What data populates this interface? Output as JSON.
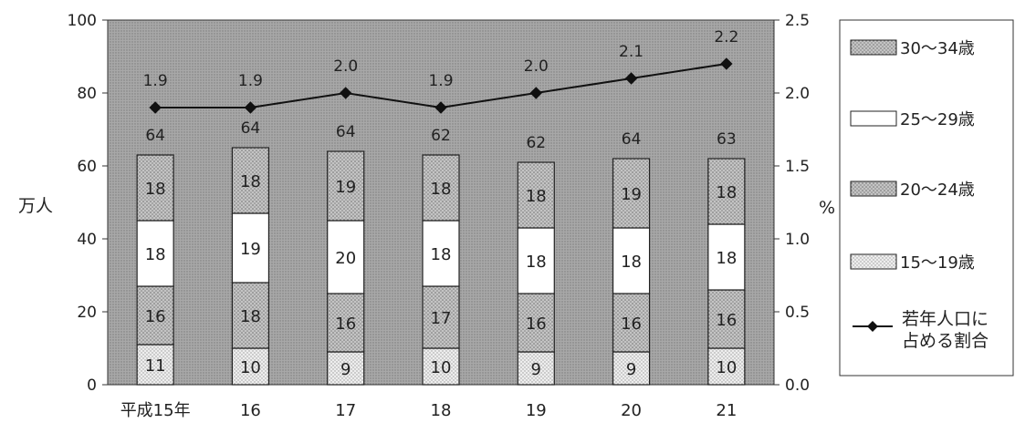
{
  "chart_data": {
    "type": "bar",
    "stacked": true,
    "categories": [
      "平成15年",
      "16",
      "17",
      "18",
      "19",
      "20",
      "21"
    ],
    "series": [
      {
        "name": "15～19歳",
        "values": [
          11,
          10,
          9,
          10,
          9,
          9,
          10
        ],
        "fill": "#d8d8d8"
      },
      {
        "name": "20～24歳",
        "values": [
          16,
          18,
          16,
          17,
          16,
          16,
          16
        ],
        "fill": "#a6a6a6"
      },
      {
        "name": "25～29歳",
        "values": [
          18,
          19,
          20,
          18,
          18,
          18,
          18
        ],
        "fill": "#ffffff"
      },
      {
        "name": "30～34歳",
        "values": [
          18,
          18,
          19,
          18,
          18,
          19,
          18
        ],
        "fill": "#b4b4b4"
      }
    ],
    "totals": [
      64,
      64,
      64,
      62,
      62,
      64,
      63
    ],
    "line": {
      "name": "若年人口に占める割合",
      "values": [
        1.9,
        1.9,
        2.0,
        1.9,
        2.0,
        2.1,
        2.2
      ],
      "labels": [
        "1.9",
        "1.9",
        "2.0",
        "1.9",
        "2.0",
        "2.1",
        "2.2"
      ]
    },
    "ylabel": "万人",
    "y2label": "%",
    "ylim": [
      0,
      100
    ],
    "y2lim": [
      0,
      2.5
    ],
    "yticks": [
      "0",
      "20",
      "40",
      "60",
      "80",
      "100"
    ],
    "y2ticks": [
      "0.0",
      "0.5",
      "1.0",
      "1.5",
      "2.0",
      "2.5"
    ],
    "legend": [
      {
        "label": "30～34歳",
        "kind": "swatch",
        "series": 3
      },
      {
        "label": "25～29歳",
        "kind": "swatch",
        "series": 2
      },
      {
        "label": "20～24歳",
        "kind": "swatch",
        "series": 1
      },
      {
        "label": "15～19歳",
        "kind": "swatch",
        "series": 0
      },
      {
        "label": "若年人口に\n占める割合",
        "kind": "line"
      }
    ],
    "legend_position": "right",
    "plot_background": "#9a9a9a",
    "line_color": "#111111",
    "grid": false
  }
}
